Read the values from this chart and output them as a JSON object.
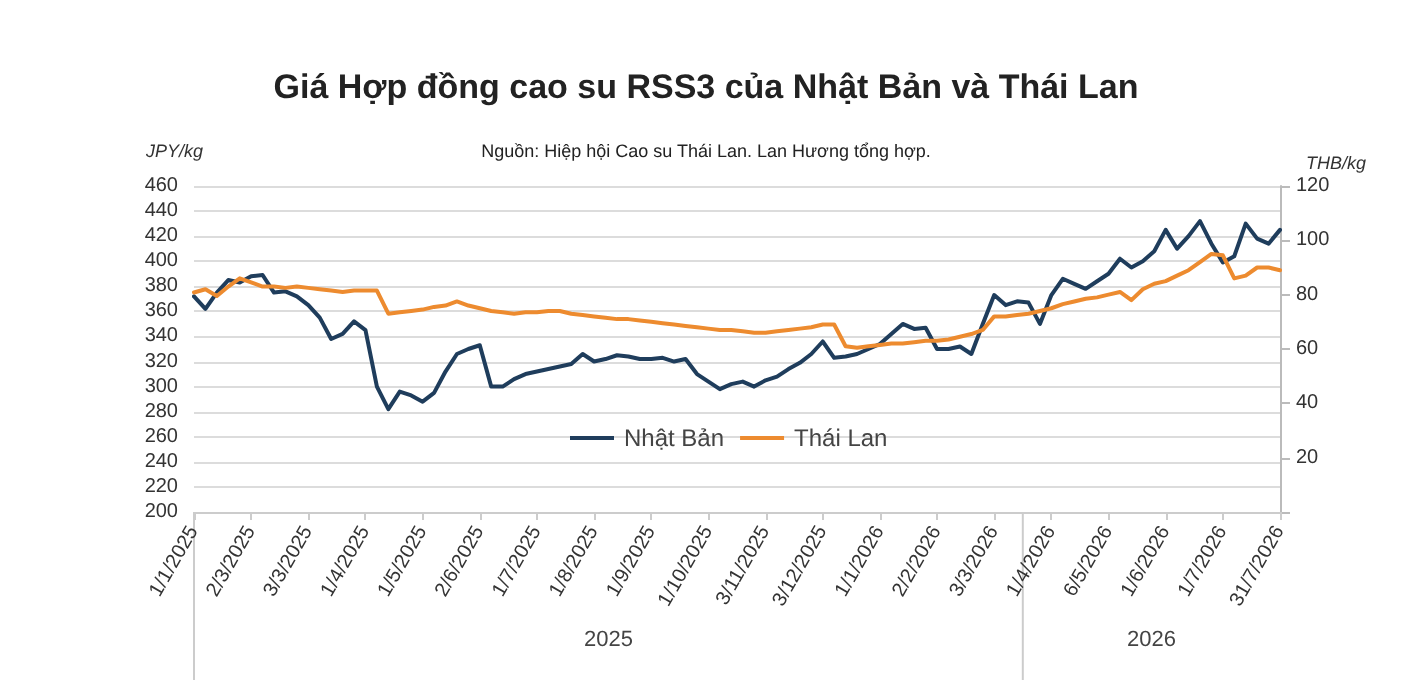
{
  "chart_data": {
    "type": "line",
    "title": "Giá Hợp đồng cao su RSS3 của Nhật Bản và Thái Lan",
    "subtitle": "Nguồn: Hiệp hội Cao su Thái Lan. Lan Hương tổng hợp.",
    "ylabel": "JPY/kg",
    "y2label": "THB/kg",
    "categories": [
      "1/1/2025",
      null,
      null,
      null,
      null,
      "2/3/2025",
      null,
      null,
      null,
      null,
      "3/3/2025",
      null,
      null,
      null,
      null,
      "1/4/2025",
      null,
      null,
      null,
      null,
      "1/5/2025",
      null,
      null,
      null,
      null,
      "2/6/2025",
      null,
      null,
      null,
      null,
      "1/7/2025",
      null,
      null,
      null,
      null,
      "1/8/2025",
      null,
      null,
      null,
      null,
      "1/9/2025",
      null,
      null,
      null,
      null,
      "1/10/2025",
      null,
      null,
      null,
      null,
      "3/11/2025",
      null,
      null,
      null,
      null,
      "3/12/2025",
      null,
      null,
      null,
      null,
      "1/1/2026",
      null,
      null,
      null,
      null,
      "2/2/2026",
      null,
      null,
      null,
      null,
      "3/3/2026",
      null,
      null,
      null,
      null,
      "1/4/2026",
      null,
      null,
      null,
      null,
      "6/5/2026",
      null,
      null,
      null,
      null,
      "1/6/2026",
      null,
      null,
      null,
      null,
      "1/7/2026",
      null,
      null,
      null,
      null,
      "31/7/2026"
    ],
    "series": [
      {
        "name": "Nhật Bản",
        "color": "#1f3d5c",
        "values": [
          372,
          362,
          375,
          385,
          383,
          388,
          389,
          375,
          376,
          372,
          365,
          355,
          338,
          342,
          352,
          345,
          300,
          282,
          296,
          293,
          288,
          295,
          312,
          326,
          330,
          333,
          300,
          300,
          306,
          310,
          312,
          314,
          316,
          318,
          326,
          320,
          322,
          325,
          324,
          322,
          322,
          323,
          320,
          322,
          310,
          304,
          298,
          302,
          304,
          300,
          305,
          308,
          314,
          319,
          326,
          336,
          323,
          324,
          326,
          330,
          334,
          342,
          350,
          346,
          347,
          330,
          330,
          332,
          326,
          350,
          373,
          365,
          368,
          367,
          350,
          373,
          386,
          382,
          378,
          384,
          390,
          402,
          395,
          400,
          408,
          425,
          410,
          420,
          432,
          414,
          399,
          404,
          430,
          418,
          414,
          425
        ]
      },
      {
        "name": "Thái Lan",
        "color": "#ed8b2f",
        "axis": "y2",
        "values": [
          80.8,
          82,
          79.5,
          83,
          86,
          84.5,
          83,
          83,
          82.5,
          83,
          82.5,
          82,
          81.5,
          81,
          81.5,
          81.5,
          81.5,
          73,
          73.5,
          74,
          74.5,
          75.5,
          76,
          77.5,
          76,
          75,
          74,
          73.5,
          73,
          73.5,
          73.5,
          74,
          74,
          73,
          72.5,
          72,
          71.5,
          71,
          71,
          70.5,
          70,
          69.5,
          69,
          68.5,
          68,
          67.5,
          67,
          67,
          66.5,
          66,
          66,
          66.5,
          67,
          67.5,
          68,
          69,
          69,
          61,
          60.5,
          61,
          61.5,
          62,
          62,
          62.5,
          63,
          63,
          63.5,
          64.5,
          65.5,
          67,
          72,
          72,
          72.5,
          73,
          74,
          75,
          76.5,
          77.5,
          78.5,
          79,
          80,
          81,
          78,
          82,
          84,
          85,
          87,
          89,
          92,
          95,
          94.5,
          86,
          87,
          90,
          90,
          89
        ]
      }
    ],
    "ylim": [
      200,
      460
    ],
    "yticks": [
      200,
      220,
      240,
      260,
      280,
      300,
      320,
      340,
      360,
      380,
      400,
      420,
      440,
      460
    ],
    "y2lim": [
      0,
      120
    ],
    "y2ticks": [
      {
        "value": 0,
        "label": null
      },
      20,
      40,
      60,
      80,
      100,
      120
    ],
    "annotations": [
      "2025",
      "2026"
    ],
    "grid": "y",
    "legend": "bottom",
    "marker": "none",
    "line_style": "solid"
  }
}
